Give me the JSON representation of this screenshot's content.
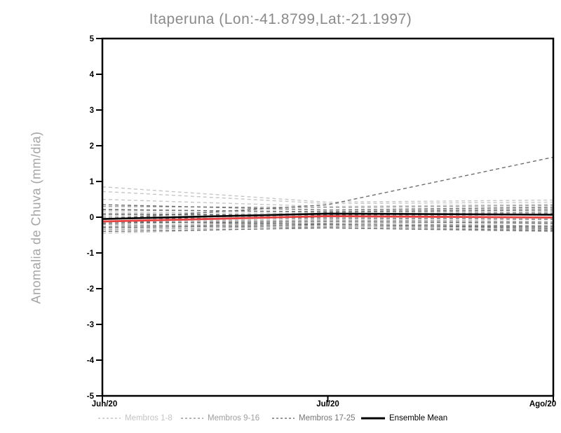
{
  "title": "Itaperuna (Lon:-41.8799,Lat:-21.1997)",
  "y_axis": {
    "label": "Anomalia de Chuva (mm/dia)",
    "ticks": [
      "5",
      "4",
      "3",
      "2",
      "1",
      "0",
      "-1",
      "-2",
      "-3",
      "-4",
      "-5"
    ]
  },
  "x_axis": {
    "ticks": [
      "Jun/20",
      "Jul/20",
      "Ago/20"
    ]
  },
  "legend": [
    {
      "label": "Membros 1-8",
      "color": "#c4c4c4",
      "dashed": true
    },
    {
      "label": "Membros 9-16",
      "color": "#9e9e9e",
      "dashed": true
    },
    {
      "label": "Membros 17-25",
      "color": "#757575",
      "dashed": true
    },
    {
      "label": "Ensemble Mean",
      "color": "#000000",
      "dashed": false
    }
  ],
  "colors": {
    "frame": "#000000",
    "title_gray": "#8a8a8a",
    "ylabel_gray": "#a5a5a5",
    "members_light": "#c6c6c6",
    "members_medium": "#9e9e9e",
    "members_dark": "#6f6f6f",
    "ensemble_mean": "#000000",
    "red_reference": "#e84040"
  },
  "chart_data": {
    "type": "line",
    "title": "Itaperuna (Lon:-41.8799,Lat:-21.1997)",
    "xlabel": "",
    "ylabel": "Anomalia de Chuva (mm/dia)",
    "x_categories": [
      "Jun/20",
      "Jul/20",
      "Ago/20"
    ],
    "ylim": [
      -5,
      5
    ],
    "yticks": [
      5,
      4,
      3,
      2,
      1,
      0,
      -1,
      -2,
      -3,
      -4,
      -5
    ],
    "grid": false,
    "legend_position": "bottom",
    "series": [
      {
        "name": "Membros 1-8",
        "style": "dashed",
        "color": "#c6c6c6",
        "members": [
          [
            0.85,
            0.42,
            0.48
          ],
          [
            0.72,
            0.38,
            0.42
          ],
          [
            0.5,
            0.3,
            0.36
          ],
          [
            0.15,
            0.1,
            0.16
          ],
          [
            0.04,
            0.06,
            0.1
          ],
          [
            -0.1,
            -0.05,
            -0.12
          ],
          [
            -0.25,
            -0.13,
            -0.18
          ],
          [
            -0.45,
            -0.28,
            -0.22
          ]
        ]
      },
      {
        "name": "Membros 9-16",
        "style": "dashed",
        "color": "#9e9e9e",
        "members": [
          [
            0.3,
            0.27,
            0.33
          ],
          [
            0.2,
            0.16,
            0.24
          ],
          [
            0.1,
            0.06,
            0.14
          ],
          [
            0.0,
            0.03,
            0.07
          ],
          [
            -0.14,
            -0.08,
            -0.14
          ],
          [
            -0.27,
            -0.17,
            -0.24
          ],
          [
            -0.35,
            -0.25,
            -0.34
          ],
          [
            -0.2,
            -0.3,
            -0.4
          ]
        ]
      },
      {
        "name": "Membros 17-25",
        "style": "dashed",
        "color": "#6f6f6f",
        "members": [
          [
            -0.05,
            0.35,
            1.68
          ],
          [
            0.22,
            0.14,
            0.2
          ],
          [
            0.08,
            0.06,
            0.1
          ],
          [
            -0.04,
            -0.02,
            -0.06
          ],
          [
            -0.17,
            -0.12,
            -0.17
          ],
          [
            -0.3,
            -0.21,
            -0.27
          ],
          [
            -0.4,
            -0.3,
            -0.37
          ],
          [
            0.35,
            0.2,
            0.28
          ],
          [
            -0.12,
            -0.2,
            -0.31
          ]
        ]
      },
      {
        "name": "Ensemble Mean",
        "style": "solid",
        "color": "#000000",
        "width": 2.6,
        "values": [
          -0.05,
          0.1,
          0.07
        ]
      },
      {
        "name": "red-reference-line",
        "style": "solid",
        "color": "#e84040",
        "width": 2.8,
        "values": [
          -0.12,
          0.03,
          -0.01
        ]
      }
    ]
  }
}
